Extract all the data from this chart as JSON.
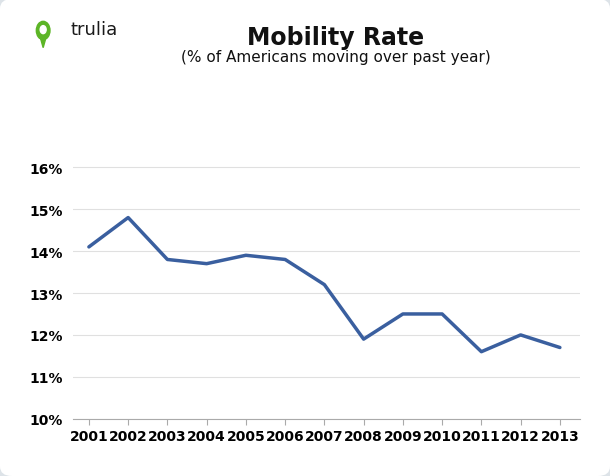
{
  "title": "Mobility Rate",
  "subtitle": "(% of Americans moving over past year)",
  "years": [
    2001,
    2002,
    2003,
    2004,
    2005,
    2006,
    2007,
    2008,
    2009,
    2010,
    2011,
    2012,
    2013
  ],
  "values": [
    0.141,
    0.148,
    0.138,
    0.137,
    0.139,
    0.138,
    0.132,
    0.119,
    0.125,
    0.125,
    0.116,
    0.12,
    0.117
  ],
  "line_color": "#3a5f9f",
  "line_width": 2.5,
  "ylim": [
    0.1,
    0.166
  ],
  "yticks": [
    0.1,
    0.11,
    0.12,
    0.13,
    0.14,
    0.15,
    0.16
  ],
  "outer_bg": "#dde3e8",
  "card_bg": "#ffffff",
  "title_fontsize": 17,
  "subtitle_fontsize": 11,
  "tick_fontsize": 10,
  "logo_text": "trulia",
  "logo_color": "#5cb526",
  "logo_text_color": "#1a1a1a",
  "logo_fontsize": 13,
  "axis_line_color": "#aaaaaa",
  "grid_color": "#e0e0e0"
}
